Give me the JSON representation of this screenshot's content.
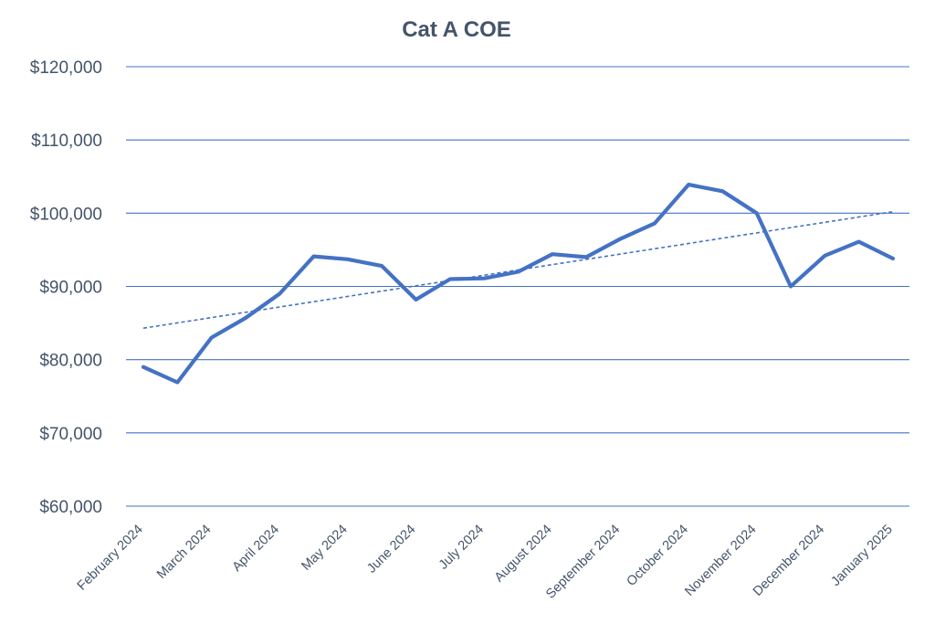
{
  "chart_data": {
    "type": "line",
    "title": "Cat A COE",
    "xlabel": "",
    "ylabel": "",
    "ylim": [
      60000,
      120000
    ],
    "yticks": [
      60000,
      70000,
      80000,
      90000,
      100000,
      110000,
      120000
    ],
    "ytick_labels": [
      "$60,000",
      "$70,000",
      "$80,000",
      "$90,000",
      "$100,000",
      "$110,000",
      "$120,000"
    ],
    "grid": true,
    "legend": "none",
    "x_labels": [
      "February 2024",
      "March 2024",
      "April 2024",
      "May 2024",
      "June 2024",
      "July 2024",
      "August 2024",
      "September 2024",
      "October 2024",
      "November 2024",
      "December 2024",
      "January 2025"
    ],
    "label_every": 2,
    "series": [
      {
        "name": "Cat A COE",
        "style": "solid",
        "color": "#4472c4",
        "values": [
          79000,
          76900,
          83000,
          85700,
          89000,
          94100,
          93700,
          92800,
          88200,
          91000,
          91100,
          92000,
          94400,
          94000,
          96500,
          98600,
          103900,
          103000,
          100000,
          90000,
          94200,
          96100,
          93800
        ]
      },
      {
        "name": "Linear trend",
        "style": "dashed",
        "color": "#4472c4",
        "values": [
          84300,
          100200
        ]
      }
    ]
  }
}
